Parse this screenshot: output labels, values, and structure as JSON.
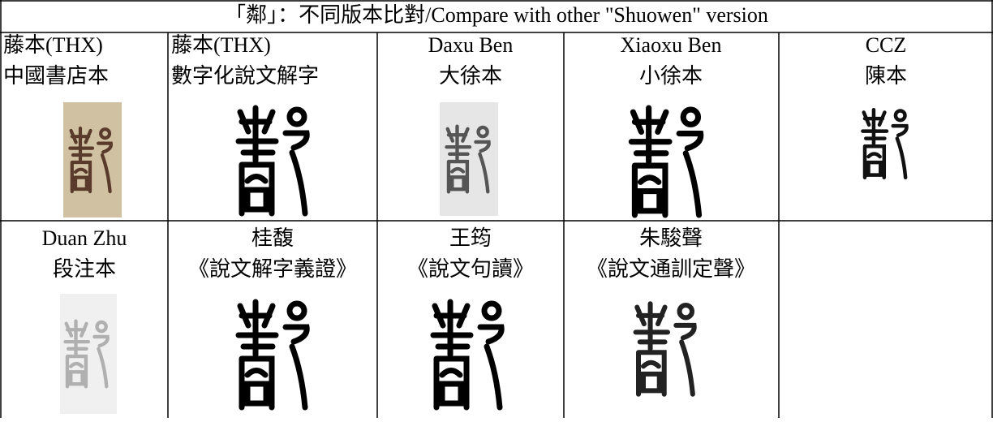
{
  "title": "「鄰」：不同版本比對/Compare with other \"Shuowen\" version",
  "header_rows": [
    {
      "cells": [
        [
          "藤本(THX)",
          "中國書店本"
        ],
        [
          "藤本(THX)",
          "數字化說文解字"
        ],
        [
          "Daxu Ben",
          "大徐本"
        ],
        [
          "Xiaoxu Ben",
          "小徐本"
        ],
        [
          "CCZ",
          "陳本"
        ]
      ]
    },
    {
      "cells": [
        [
          "Duan Zhu",
          "段注本"
        ],
        [
          "桂馥",
          "《說文解字義證》"
        ],
        [
          "王筠",
          "《說文句讀》"
        ],
        [
          "朱駿聲",
          "《說文通訓定聲》"
        ]
      ]
    }
  ]
}
